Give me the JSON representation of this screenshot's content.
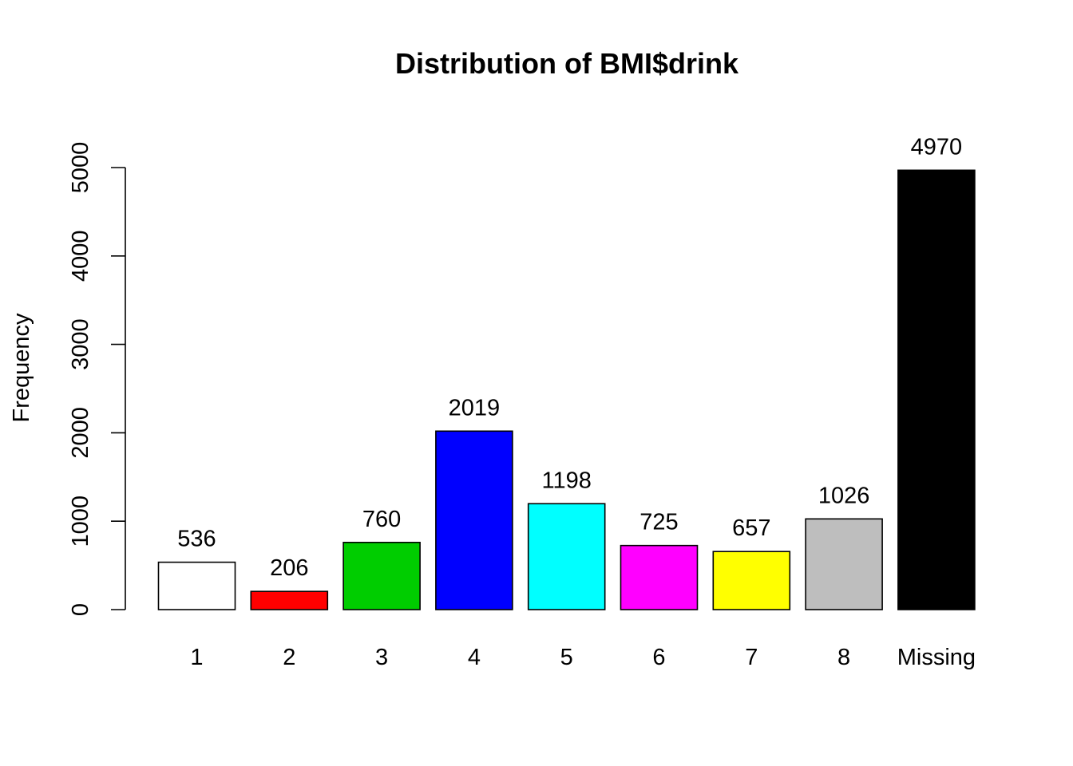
{
  "chart_data": {
    "type": "bar",
    "title": "Distribution of BMI$drink",
    "xlabel": "",
    "ylabel": "Frequency",
    "categories": [
      "1",
      "2",
      "3",
      "4",
      "5",
      "6",
      "7",
      "8",
      "Missing"
    ],
    "values": [
      536,
      206,
      760,
      2019,
      1198,
      725,
      657,
      1026,
      4970
    ],
    "data_labels": [
      "536",
      "206",
      "760",
      "2019",
      "1198",
      "725",
      "657",
      "1026",
      "4970"
    ],
    "colors": [
      "#FFFFFF",
      "#FF0000",
      "#00CD00",
      "#0000FF",
      "#00FFFF",
      "#FF00FF",
      "#FFFF00",
      "#BEBEBE",
      "#000000"
    ],
    "y_ticks": [
      0,
      1000,
      2000,
      3000,
      4000,
      5000
    ],
    "y_tick_labels": [
      "0",
      "1000",
      "2000",
      "3000",
      "4000",
      "5000"
    ],
    "ylim": [
      0,
      5000
    ],
    "grid": false,
    "legend": "none"
  }
}
